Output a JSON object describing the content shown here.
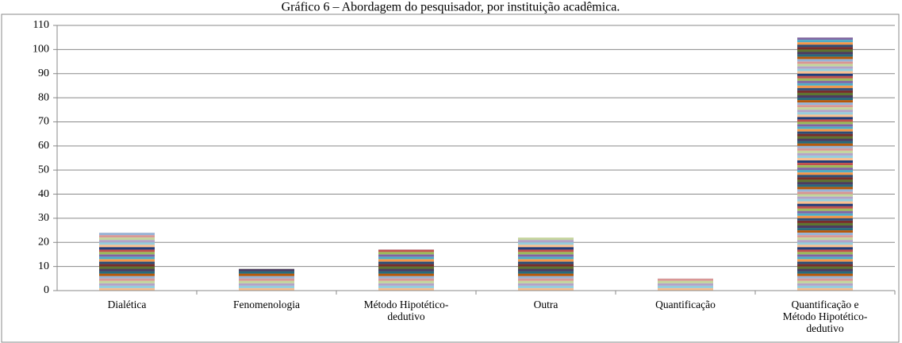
{
  "chart_data": {
    "type": "bar",
    "title": "Gráfico 6 – Abordagem do pesquisador, por instituição acadêmica.",
    "categories": [
      "Dialética",
      "Fenomenologia",
      "Método Hipotético-dedutivo",
      "Outra",
      "Quantificação",
      "Quantificação e Método Hipotético-dedutivo"
    ],
    "values": [
      24,
      9,
      17,
      22,
      5,
      105
    ],
    "ylim": [
      0,
      110
    ],
    "yticks": [
      0,
      10,
      20,
      30,
      40,
      50,
      60,
      70,
      80,
      90,
      100,
      110
    ],
    "grid": true
  }
}
